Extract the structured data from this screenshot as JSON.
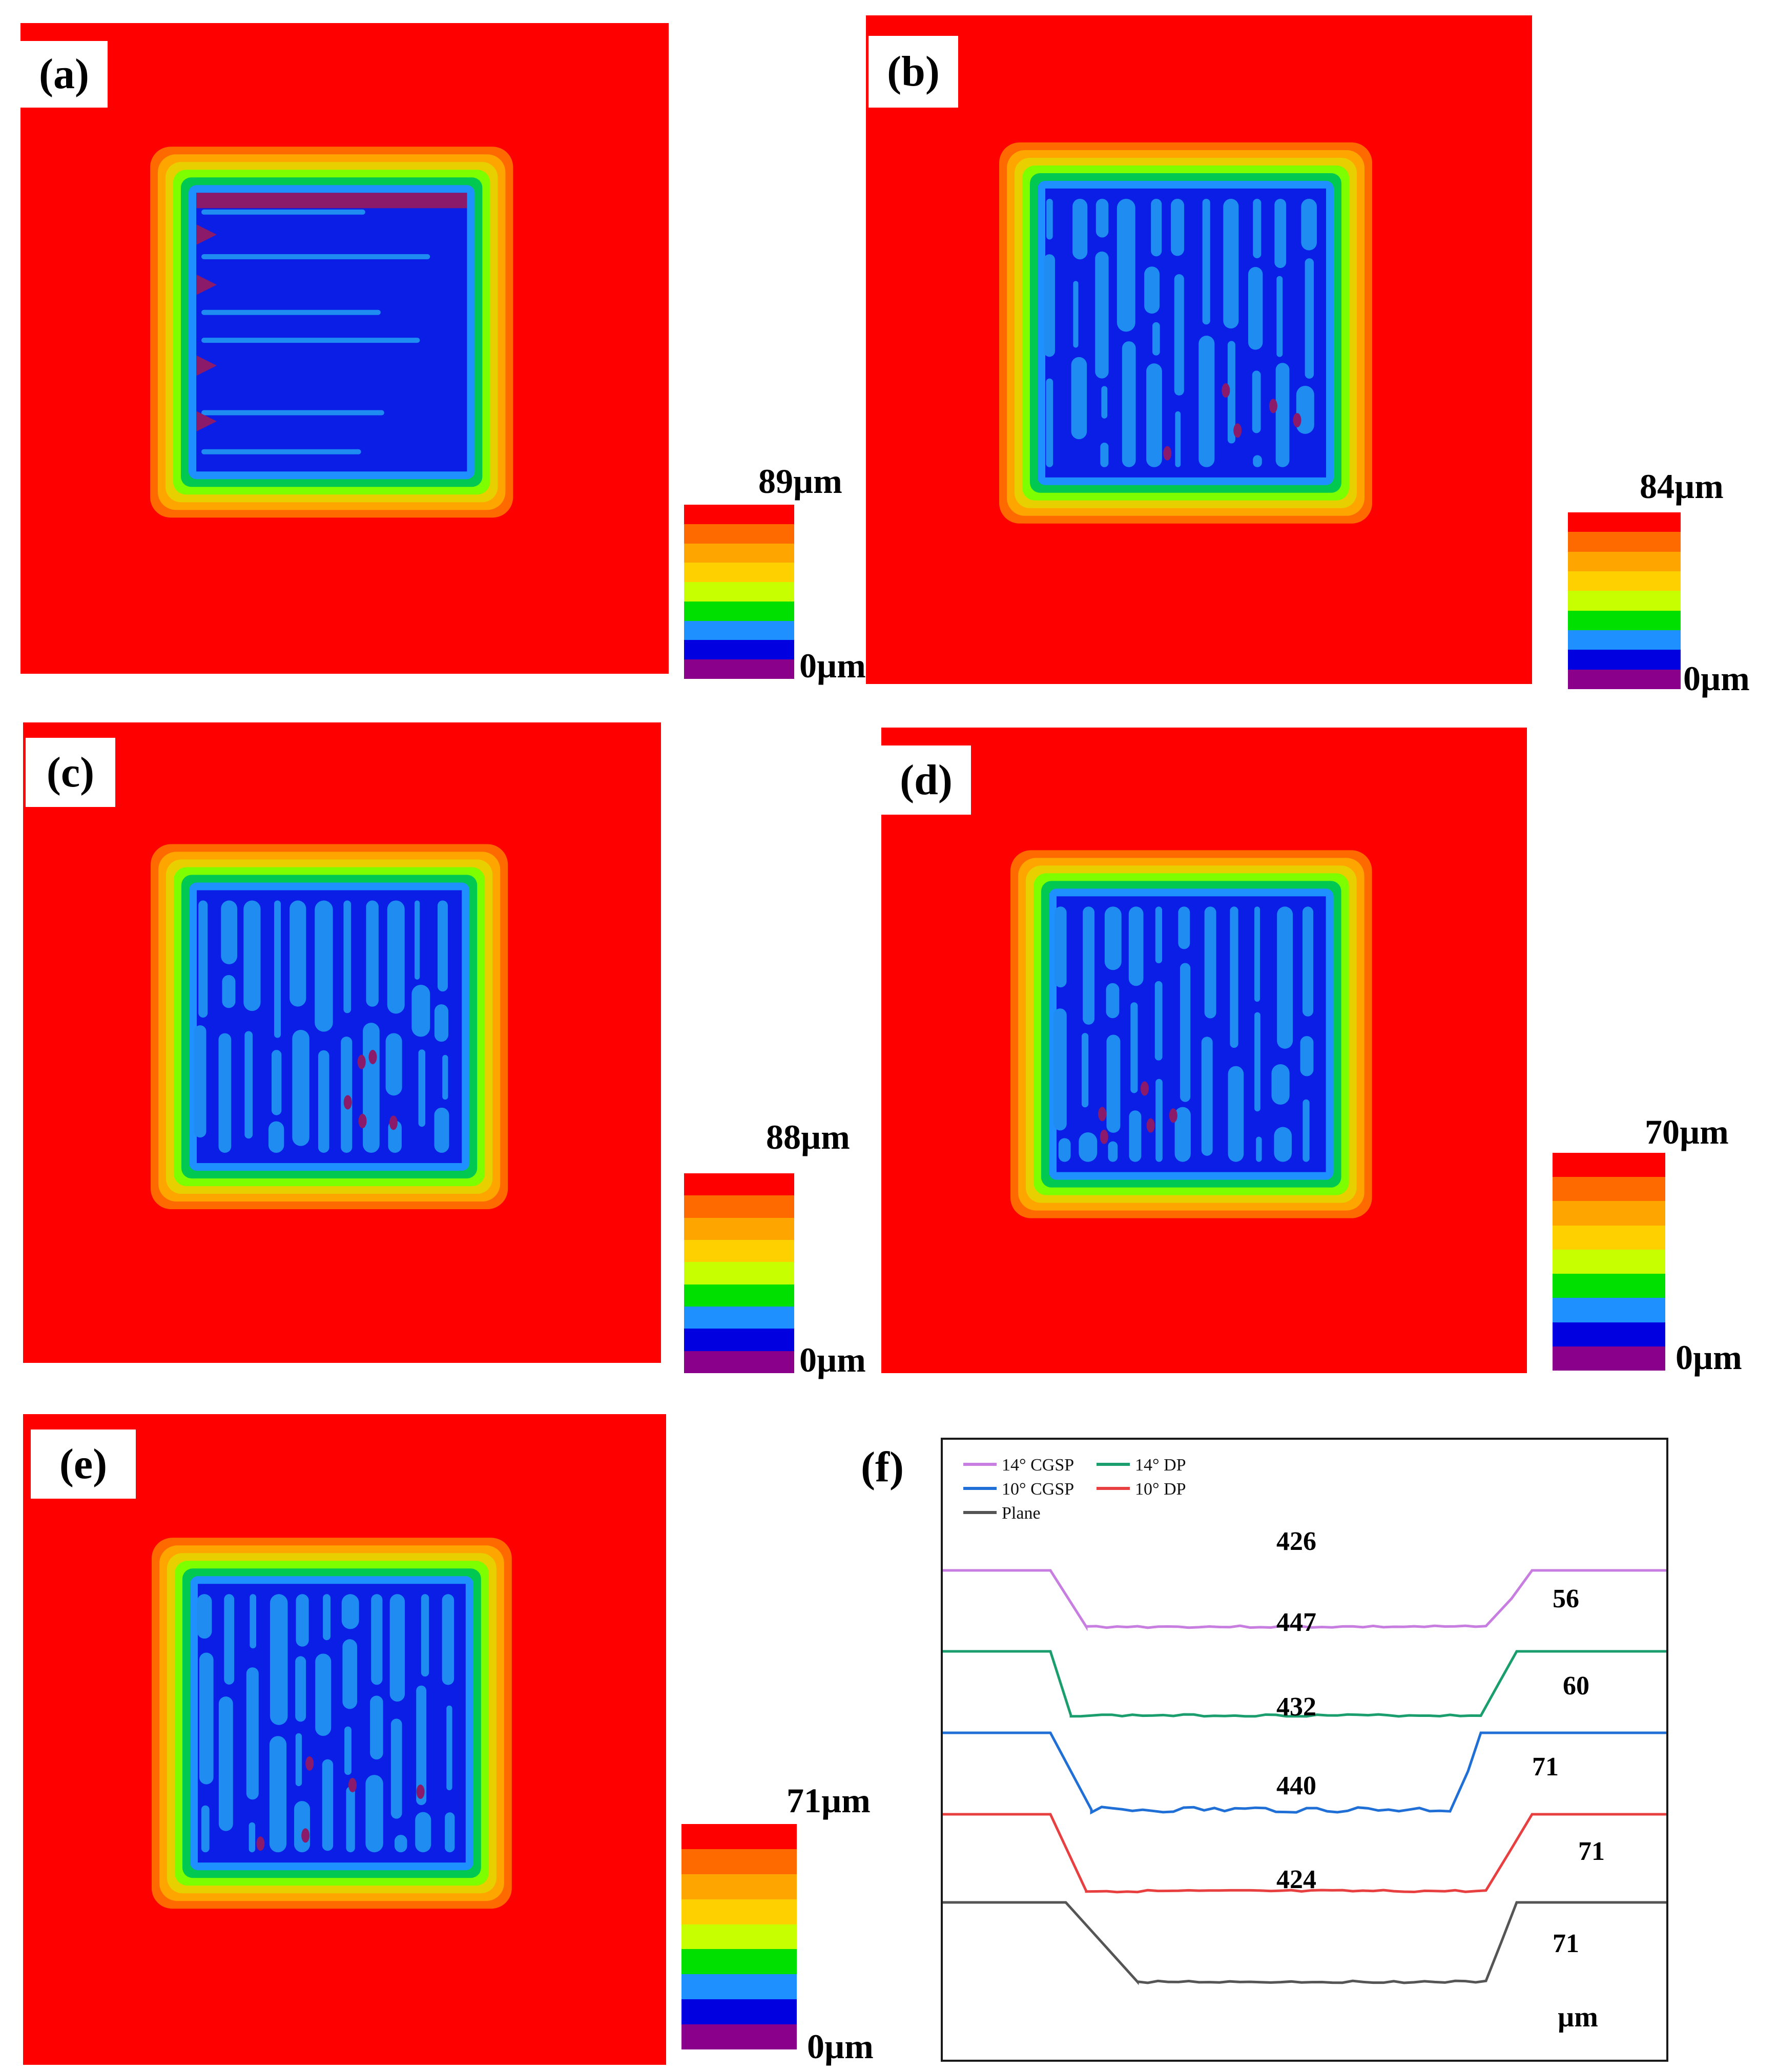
{
  "panels": [
    {
      "label": "(a)",
      "scale_max": "89µm",
      "scale_min": "0µm",
      "stripe_pattern": "horizontal"
    },
    {
      "label": "(b)",
      "scale_max": "84µm",
      "scale_min": "0µm",
      "stripe_pattern": "vertical"
    },
    {
      "label": "(c)",
      "scale_max": "88µm",
      "scale_min": "0µm",
      "stripe_pattern": "vertical"
    },
    {
      "label": "(d)",
      "scale_max": "70µm",
      "scale_min": "0µm",
      "stripe_pattern": "vertical"
    },
    {
      "label": "(e)",
      "scale_max": "71µm",
      "scale_min": "0µm",
      "stripe_pattern": "vertical"
    }
  ],
  "colorbar_colors": [
    "#ff0000",
    "#ff6a00",
    "#ffa500",
    "#ffd000",
    "#c8ff00",
    "#00e000",
    "#1e90ff",
    "#0000e0",
    "#8b008b"
  ],
  "map_colors": {
    "background": "#ff0000",
    "ring": [
      "#ff6a00",
      "#ffa500",
      "#e8d000",
      "#7dff00",
      "#00c850",
      "#1e90ff"
    ],
    "floor": "#0a1ee6",
    "stripe": "#1e8cf0",
    "defect": "#8b1a6b"
  },
  "chart_data": {
    "type": "line",
    "title": "(f)",
    "xlabel": "",
    "ylabel": "",
    "unit_label": "µm",
    "legend": [
      "14° CGSP",
      "10° CGSP",
      "14° DP",
      "10° DP",
      "Plane"
    ],
    "series": [
      {
        "name": "14° CGSP",
        "color": "#c77ee0",
        "width_label": "426",
        "depth_label": "56"
      },
      {
        "name": "14° DP",
        "color": "#1a9e6e",
        "width_label": "447",
        "depth_label": "60"
      },
      {
        "name": "10° CGSP",
        "color": "#1f6fd6",
        "width_label": "432",
        "depth_label": "71"
      },
      {
        "name": "10° DP",
        "color": "#e84040",
        "width_label": "440",
        "depth_label": "71"
      },
      {
        "name": "Plane",
        "color": "#555555",
        "width_label": "424",
        "depth_label": "71"
      }
    ]
  }
}
